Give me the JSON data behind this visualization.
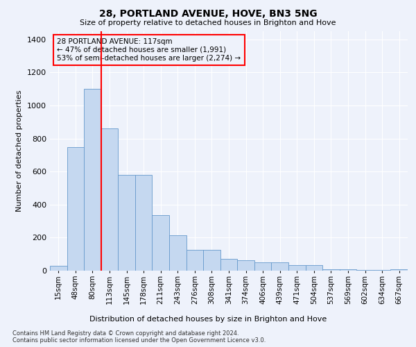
{
  "title": "28, PORTLAND AVENUE, HOVE, BN3 5NG",
  "subtitle": "Size of property relative to detached houses in Brighton and Hove",
  "xlabel": "Distribution of detached houses by size in Brighton and Hove",
  "ylabel": "Number of detached properties",
  "bar_labels": [
    "15sqm",
    "48sqm",
    "80sqm",
    "113sqm",
    "145sqm",
    "178sqm",
    "211sqm",
    "243sqm",
    "276sqm",
    "308sqm",
    "341sqm",
    "374sqm",
    "406sqm",
    "439sqm",
    "471sqm",
    "504sqm",
    "537sqm",
    "569sqm",
    "602sqm",
    "634sqm",
    "667sqm"
  ],
  "bar_values": [
    30,
    750,
    1100,
    860,
    580,
    580,
    335,
    215,
    125,
    125,
    70,
    65,
    50,
    50,
    35,
    35,
    10,
    10,
    5,
    5,
    8
  ],
  "bar_color": "#c5d8f0",
  "bar_edgecolor": "#6699cc",
  "vline_x": 2.5,
  "vline_color": "red",
  "annotation_text": "28 PORTLAND AVENUE: 117sqm\n← 47% of detached houses are smaller (1,991)\n53% of semi-detached houses are larger (2,274) →",
  "annotation_box_color": "red",
  "ylim": [
    0,
    1450
  ],
  "yticks": [
    0,
    200,
    400,
    600,
    800,
    1000,
    1200,
    1400
  ],
  "footnote": "Contains HM Land Registry data © Crown copyright and database right 2024.\nContains public sector information licensed under the Open Government Licence v3.0.",
  "bg_color": "#eef2fb",
  "grid_color": "#ffffff"
}
